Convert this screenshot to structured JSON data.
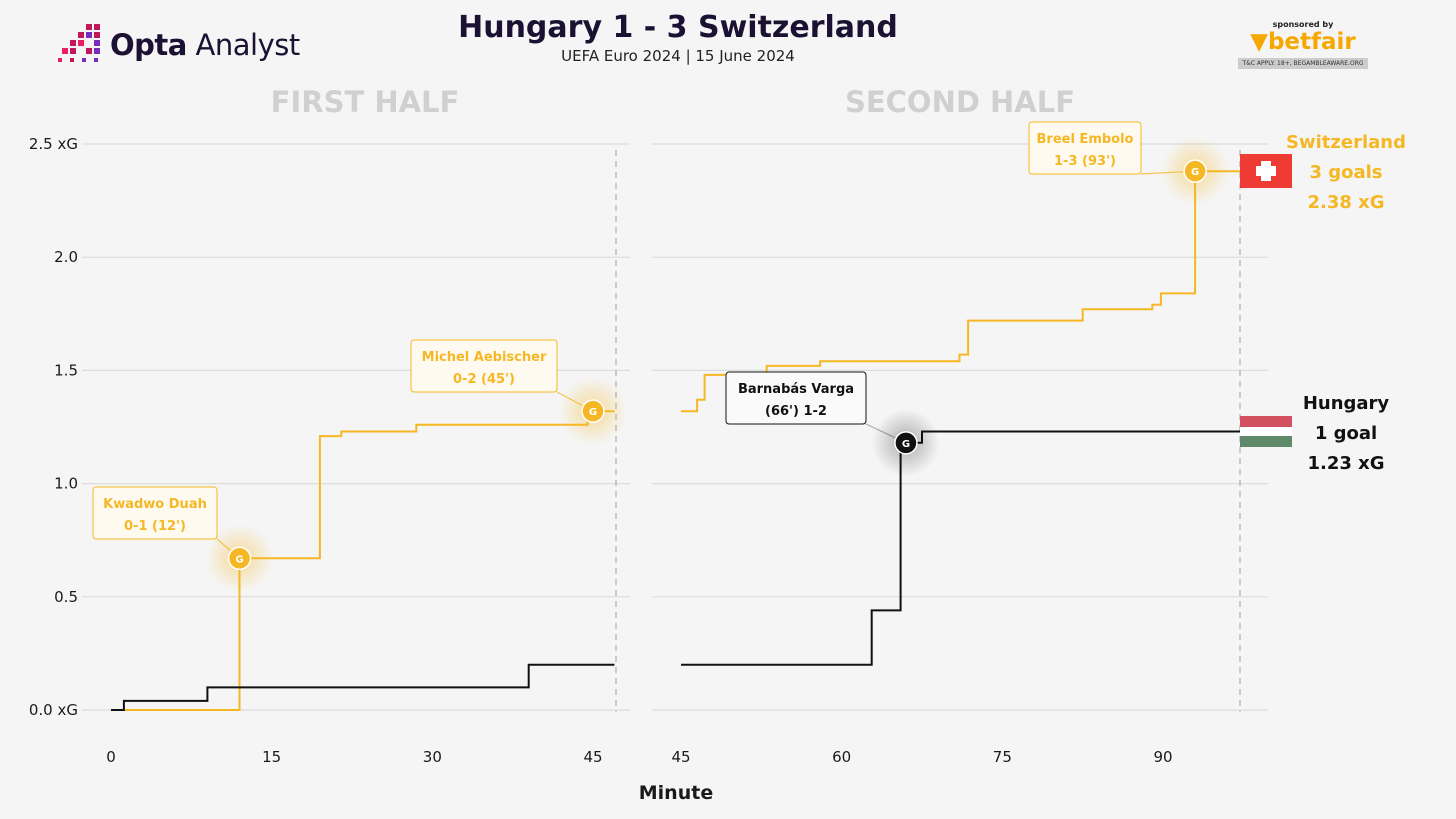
{
  "brand": {
    "name_bold": "Opta",
    "name_light": " Analyst"
  },
  "header": {
    "title": "Hungary 1 - 3 Switzerland",
    "subtitle": "UEFA Euro 2024 | 15 June 2024"
  },
  "sponsor": {
    "label": "sponsored by",
    "name": "betfair",
    "terms": "T&C APPLY. 18+, BEGAMBLEAWARE.ORG"
  },
  "colors": {
    "switzerland": "#f5b824",
    "hungary": "#111111",
    "grid": "#dcdcdc",
    "halftitle": "#d0d0d0"
  },
  "chart_data": {
    "type": "line",
    "step": true,
    "xlabel": "Minute",
    "ylim": [
      0,
      2.5
    ],
    "yticks": [
      "0.0 xG",
      "0.5",
      "1.0",
      "1.5",
      "2.0",
      "2.5 xG"
    ],
    "grid": true,
    "panels": [
      {
        "title": "FIRST HALF",
        "xlim": [
          0,
          47
        ],
        "xticks": [
          "0",
          "15",
          "30",
          "45"
        ],
        "series": [
          {
            "name": "Switzerland",
            "points": [
              [
                1.2,
                0
              ],
              [
                12,
                0
              ],
              [
                12,
                0.67
              ],
              [
                19.5,
                0.67
              ],
              [
                19.5,
                1.21
              ],
              [
                21.5,
                1.21
              ],
              [
                21.5,
                1.23
              ],
              [
                28.5,
                1.23
              ],
              [
                28.5,
                1.26
              ],
              [
                44.5,
                1.26
              ],
              [
                44.5,
                1.32
              ],
              [
                47,
                1.32
              ]
            ]
          },
          {
            "name": "Hungary",
            "points": [
              [
                0,
                0
              ],
              [
                1.2,
                0
              ],
              [
                1.2,
                0.04
              ],
              [
                9,
                0.04
              ],
              [
                9,
                0.1
              ],
              [
                39,
                0.1
              ],
              [
                39,
                0.2
              ],
              [
                47,
                0.2
              ]
            ]
          }
        ],
        "goals": [
          {
            "team": "Switzerland",
            "minute": 12,
            "xg": 0.67,
            "label_line1": "Kwadwo Duah",
            "label_line2": "0-1 (12')"
          },
          {
            "team": "Switzerland",
            "minute": 45,
            "xg": 1.32,
            "label_line1": "Michel Aebischer",
            "label_line2": "0-2 (45')"
          }
        ]
      },
      {
        "title": "SECOND HALF",
        "xlim": [
          45,
          98
        ],
        "xticks": [
          "45",
          "60",
          "75",
          "90"
        ],
        "series": [
          {
            "name": "Switzerland",
            "points": [
              [
                45,
                1.32
              ],
              [
                46.5,
                1.32
              ],
              [
                46.5,
                1.37
              ],
              [
                47.2,
                1.37
              ],
              [
                47.2,
                1.48
              ],
              [
                53,
                1.48
              ],
              [
                53,
                1.52
              ],
              [
                58,
                1.52
              ],
              [
                58,
                1.54
              ],
              [
                71,
                1.54
              ],
              [
                71,
                1.57
              ],
              [
                71.8,
                1.57
              ],
              [
                71.8,
                1.72
              ],
              [
                82.5,
                1.72
              ],
              [
                82.5,
                1.77
              ],
              [
                89,
                1.77
              ],
              [
                89,
                1.79
              ],
              [
                89.8,
                1.79
              ],
              [
                89.8,
                1.84
              ],
              [
                93,
                1.84
              ],
              [
                93,
                2.38
              ],
              [
                98,
                2.38
              ]
            ]
          },
          {
            "name": "Hungary",
            "points": [
              [
                45,
                0.2
              ],
              [
                62.8,
                0.2
              ],
              [
                62.8,
                0.44
              ],
              [
                65.5,
                0.44
              ],
              [
                65.5,
                1.18
              ],
              [
                67.5,
                1.18
              ],
              [
                67.5,
                1.23
              ],
              [
                98,
                1.23
              ]
            ]
          }
        ],
        "goals": [
          {
            "team": "Hungary",
            "minute": 66,
            "xg": 1.18,
            "label_line1": "Barnabás Varga",
            "label_line2": "(66') 1-2"
          },
          {
            "team": "Switzerland",
            "minute": 93,
            "xg": 2.38,
            "label_line1": "Breel Embolo",
            "label_line2": "1-3 (93')"
          }
        ]
      }
    ],
    "goal_marker": "G",
    "totals": [
      {
        "team": "Switzerland",
        "flag": "switzerland-flag",
        "name": "Switzerland",
        "goals": "3 goals",
        "xg": "2.38 xG"
      },
      {
        "team": "Hungary",
        "flag": "hungary-flag",
        "name": "Hungary",
        "goals": "1 goal",
        "xg": "1.23 xG"
      }
    ]
  }
}
